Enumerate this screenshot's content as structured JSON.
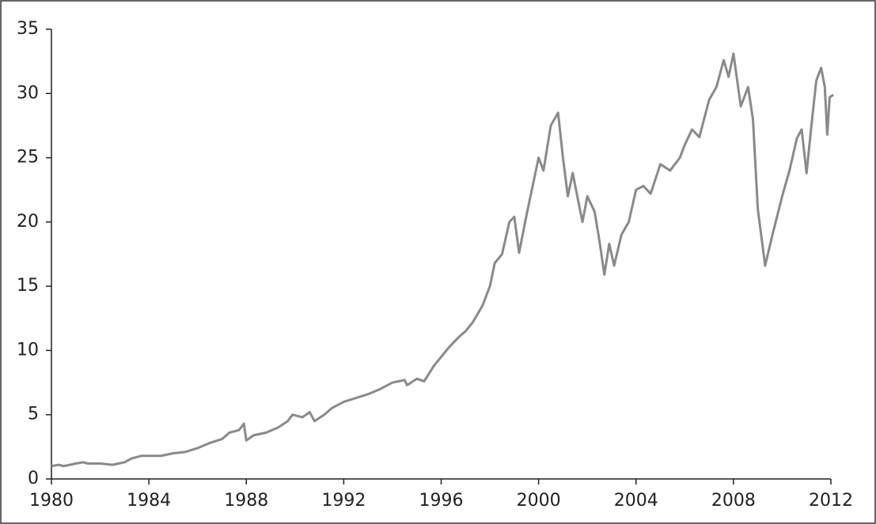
{
  "chart_data": {
    "type": "line",
    "x": [
      1980.0,
      1980.3,
      1980.5,
      1981.0,
      1981.3,
      1981.5,
      1982.0,
      1982.5,
      1983.0,
      1983.3,
      1983.7,
      1984.0,
      1984.5,
      1985.0,
      1985.5,
      1986.0,
      1986.5,
      1987.0,
      1987.3,
      1987.7,
      1987.9,
      1988.0,
      1988.3,
      1988.8,
      1989.3,
      1989.7,
      1989.9,
      1990.3,
      1990.6,
      1990.8,
      1991.2,
      1991.5,
      1992.0,
      1992.5,
      1993.0,
      1993.5,
      1994.0,
      1994.5,
      1994.6,
      1995.0,
      1995.3,
      1995.7,
      1996.0,
      1996.3,
      1996.7,
      1997.0,
      1997.3,
      1997.7,
      1998.0,
      1998.2,
      1998.5,
      1998.8,
      1999.0,
      1999.2,
      1999.5,
      1999.8,
      2000.0,
      2000.2,
      2000.5,
      2000.8,
      2001.0,
      2001.2,
      2001.4,
      2001.8,
      2002.0,
      2002.3,
      2002.5,
      2002.7,
      2002.9,
      2003.1,
      2003.4,
      2003.7,
      2004.0,
      2004.3,
      2004.6,
      2005.0,
      2005.4,
      2005.8,
      2006.0,
      2006.3,
      2006.6,
      2007.0,
      2007.3,
      2007.6,
      2007.8,
      2008.0,
      2008.3,
      2008.6,
      2008.8,
      2009.0,
      2009.3,
      2009.6,
      2010.0,
      2010.3,
      2010.6,
      2010.8,
      2011.0,
      2011.2,
      2011.4,
      2011.6,
      2011.75,
      2011.85,
      2011.95,
      2012.1
    ],
    "series": [
      {
        "color": "#8a8a8a",
        "values": [
          1.0,
          1.1,
          1.0,
          1.2,
          1.3,
          1.2,
          1.2,
          1.1,
          1.3,
          1.6,
          1.8,
          1.8,
          1.8,
          2.0,
          2.1,
          2.4,
          2.8,
          3.1,
          3.6,
          3.8,
          4.3,
          3.0,
          3.4,
          3.6,
          4.0,
          4.5,
          5.0,
          4.8,
          5.2,
          4.5,
          5.0,
          5.5,
          6.0,
          6.3,
          6.6,
          7.0,
          7.5,
          7.7,
          7.3,
          7.8,
          7.6,
          8.8,
          9.5,
          10.2,
          11.0,
          11.5,
          12.2,
          13.5,
          15.0,
          16.8,
          17.5,
          20.0,
          20.4,
          17.6,
          20.5,
          23.2,
          25.0,
          24.0,
          27.5,
          28.5,
          25.0,
          22.0,
          23.8,
          20.0,
          22.0,
          20.8,
          18.5,
          15.9,
          18.3,
          16.6,
          19.0,
          20.0,
          22.5,
          22.8,
          22.2,
          24.5,
          24.0,
          25.0,
          26.0,
          27.2,
          26.6,
          29.5,
          30.5,
          32.6,
          31.3,
          33.1,
          29.0,
          30.5,
          28.0,
          21.0,
          16.6,
          19.0,
          22.0,
          24.0,
          26.5,
          27.2,
          23.8,
          27.5,
          31.0,
          32.0,
          30.5,
          26.8,
          29.7,
          29.9
        ]
      }
    ],
    "xlim": [
      1980,
      2012
    ],
    "xticks": [
      1980,
      1984,
      1988,
      1992,
      1996,
      2000,
      2004,
      2008,
      2012
    ],
    "ylim": [
      0,
      35
    ],
    "yticks": [
      0,
      5,
      10,
      15,
      20,
      25,
      30,
      35
    ]
  }
}
